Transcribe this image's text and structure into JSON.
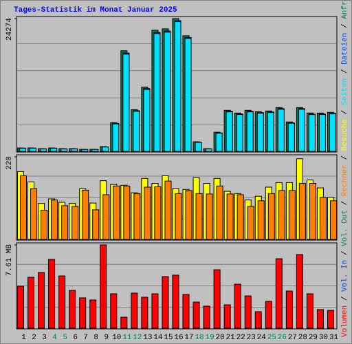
{
  "chart_data": [
    {
      "type": "bar",
      "title": "Tages-Statistik im Monat Januar 2025",
      "ylim": [
        0,
        24274
      ],
      "yticks": [
        24274
      ],
      "grid": true,
      "grid_parts": 5,
      "series": [
        {
          "name": "Anfragen",
          "color": "#00805c",
          "values": [
            747,
            747,
            622,
            747,
            622,
            622,
            498,
            498,
            996,
            5353,
            18423,
            7718,
            11826,
            22158,
            22407,
            24274,
            21162,
            1867,
            622,
            3610,
            7593,
            7096,
            7593,
            7345,
            7469,
            8091,
            5477,
            8091,
            7096,
            7096,
            7220
          ]
        },
        {
          "name": "Dateien",
          "color": "#0040ff",
          "values": [
            702,
            710,
            590,
            705,
            588,
            590,
            470,
            472,
            940,
            5210,
            18010,
            7520,
            11540,
            21760,
            22010,
            23890,
            20840,
            1790,
            590,
            3480,
            7410,
            6920,
            7410,
            7160,
            7290,
            7900,
            5320,
            7890,
            6910,
            6920,
            7040
          ]
        },
        {
          "name": "Seiten",
          "color": "#00e0ff",
          "values": [
            690,
            700,
            580,
            690,
            575,
            580,
            460,
            460,
            920,
            5120,
            17800,
            7400,
            11380,
            21550,
            21800,
            23700,
            20650,
            1760,
            575,
            3420,
            7300,
            6820,
            7300,
            7060,
            7180,
            7780,
            5240,
            7780,
            6810,
            6820,
            6940
          ]
        }
      ]
    },
    {
      "type": "bar",
      "ylim": [
        0,
        220
      ],
      "yticks": [
        220
      ],
      "grid": true,
      "grid_parts": 4,
      "series": [
        {
          "name": "Besuche",
          "color": "#ffff00",
          "values": [
            181,
            154,
            97,
            109,
            100,
            97,
            136,
            98,
            157,
            147,
            145,
            125,
            163,
            150,
            170,
            136,
            134,
            165,
            150,
            163,
            129,
            123,
            106,
            116,
            140,
            152,
            152,
            215,
            159,
            138,
            113
          ]
        },
        {
          "name": "Rechner",
          "color": "#ff8000",
          "values": [
            170,
            136,
            79,
            106,
            91,
            89,
            132,
            80,
            120,
            143,
            143,
            123,
            140,
            141,
            156,
            123,
            131,
            123,
            122,
            143,
            122,
            120,
            89,
            104,
            123,
            131,
            131,
            150,
            150,
            113,
            104
          ]
        }
      ]
    },
    {
      "type": "bar",
      "ylim": [
        0,
        7.61
      ],
      "yticks": [
        {
          "value": 7.61,
          "label": "7.61 MB"
        }
      ],
      "grid": true,
      "grid_parts": 4,
      "categories": [
        "1",
        "2",
        "3",
        "4",
        "5",
        "6",
        "7",
        "8",
        "9",
        "10",
        "11",
        "12",
        "13",
        "14",
        "15",
        "16",
        "17",
        "18",
        "19",
        "20",
        "21",
        "22",
        "23",
        "24",
        "25",
        "26",
        "27",
        "28",
        "29",
        "30",
        "31"
      ],
      "category_colors": [
        "#000000",
        "#000000",
        "#000000",
        "#00805c",
        "#00805c",
        "#000000",
        "#000000",
        "#000000",
        "#000000",
        "#000000",
        "#00805c",
        "#00805c",
        "#000000",
        "#000000",
        "#000000",
        "#000000",
        "#000000",
        "#00805c",
        "#00805c",
        "#000000",
        "#000000",
        "#000000",
        "#000000",
        "#000000",
        "#00805c",
        "#00805c",
        "#000000",
        "#000000",
        "#000000",
        "#000000",
        "#000000"
      ],
      "series": [
        {
          "name": "Volumen",
          "color": "#ff0000",
          "values": [
            3.87,
            4.68,
            5.11,
            6.3,
            4.8,
            3.49,
            2.81,
            2.62,
            7.61,
            3.18,
            1.06,
            3.24,
            2.87,
            3.18,
            4.74,
            4.87,
            3.12,
            2.43,
            2.06,
            5.36,
            2.18,
            4.05,
            2.99,
            1.56,
            2.5,
            6.36,
            3.43,
            6.74,
            3.18,
            1.75,
            1.68
          ]
        }
      ],
      "extra_legend": [
        {
          "name": "Vol. In",
          "color": "#0040ff"
        },
        {
          "name": "Vol. Out",
          "color": "#00805c"
        }
      ]
    }
  ]
}
